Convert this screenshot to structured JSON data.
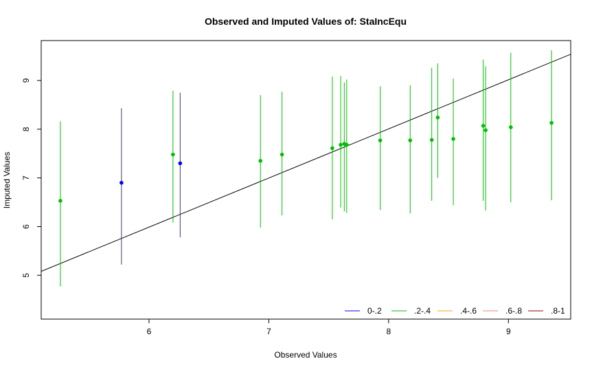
{
  "chart_data": {
    "type": "scatter",
    "title": "Observed and Imputed Values of: StaIncEqu",
    "xlabel": "Observed Values",
    "ylabel": "Imputed Values",
    "xlim": [
      5.1,
      9.52
    ],
    "ylim": [
      4.1,
      9.82
    ],
    "xticks": [
      "6",
      "7",
      "8",
      "9"
    ],
    "yticks": [
      "5",
      "6",
      "7",
      "8",
      "9"
    ],
    "grid": false,
    "reference_line": {
      "x": [
        5.0,
        9.6
      ],
      "y": [
        4.98,
        9.62
      ]
    },
    "legend": {
      "placement": "bottom-right",
      "entries": [
        {
          "label": "0-.2",
          "color": "#0000ff"
        },
        {
          "label": ".2-.4",
          "color": "#00c000"
        },
        {
          "label": ".4-.6",
          "color": "#ffa500"
        },
        {
          "label": ".6-.8",
          "color": "#f08080"
        },
        {
          "label": ".8-1",
          "color": "#8b0000"
        }
      ]
    },
    "points": [
      {
        "x": 5.26,
        "y": 6.53,
        "low": 4.77,
        "high": 8.16,
        "bin": 1
      },
      {
        "x": 5.77,
        "y": 6.9,
        "low": 5.22,
        "high": 8.43,
        "bin": 0
      },
      {
        "x": 6.2,
        "y": 7.48,
        "low": 6.08,
        "high": 8.79,
        "bin": 1
      },
      {
        "x": 6.26,
        "y": 7.3,
        "low": 5.78,
        "high": 8.75,
        "bin": 0
      },
      {
        "x": 6.93,
        "y": 7.35,
        "low": 5.98,
        "high": 8.7,
        "bin": 1
      },
      {
        "x": 7.11,
        "y": 7.48,
        "low": 6.23,
        "high": 8.77,
        "bin": 1
      },
      {
        "x": 7.53,
        "y": 7.61,
        "low": 6.15,
        "high": 9.08,
        "bin": 1
      },
      {
        "x": 7.6,
        "y": 7.68,
        "low": 6.39,
        "high": 9.09,
        "bin": 1
      },
      {
        "x": 7.63,
        "y": 7.7,
        "low": 6.31,
        "high": 8.96,
        "bin": 1
      },
      {
        "x": 7.65,
        "y": 7.68,
        "low": 6.28,
        "high": 9.02,
        "bin": 1
      },
      {
        "x": 7.93,
        "y": 7.77,
        "low": 6.34,
        "high": 8.88,
        "bin": 1
      },
      {
        "x": 8.18,
        "y": 7.77,
        "low": 6.27,
        "high": 8.9,
        "bin": 1
      },
      {
        "x": 8.36,
        "y": 7.78,
        "low": 6.53,
        "high": 9.26,
        "bin": 1
      },
      {
        "x": 8.41,
        "y": 8.24,
        "low": 7.0,
        "high": 9.35,
        "bin": 1
      },
      {
        "x": 8.54,
        "y": 7.8,
        "low": 6.44,
        "high": 9.04,
        "bin": 1
      },
      {
        "x": 8.79,
        "y": 8.07,
        "low": 6.53,
        "high": 9.43,
        "bin": 1
      },
      {
        "x": 8.81,
        "y": 7.98,
        "low": 6.33,
        "high": 9.29,
        "bin": 1
      },
      {
        "x": 9.02,
        "y": 8.04,
        "low": 6.5,
        "high": 9.57,
        "bin": 1
      },
      {
        "x": 9.36,
        "y": 8.13,
        "low": 6.54,
        "high": 9.62,
        "bin": 1
      }
    ]
  }
}
